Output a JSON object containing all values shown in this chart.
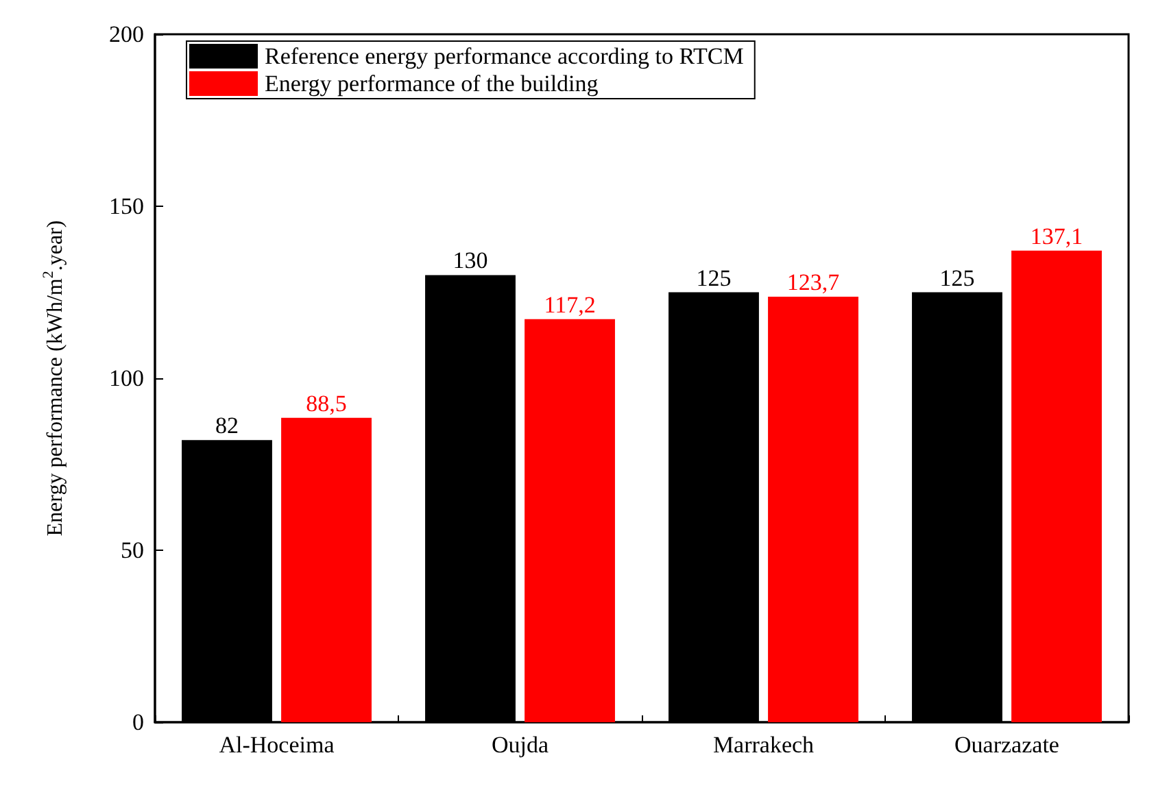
{
  "chart_data": {
    "type": "bar",
    "ylabel": "Energy performance (kWh/m$^{2}$.year)",
    "categories": [
      "Al-Hoceima",
      "Oujda",
      "Marrakech",
      "Ouarzazate"
    ],
    "series": [
      {
        "name": "Reference energy performance according to RTCM",
        "color": "#000000",
        "values": [
          82,
          130,
          125,
          125
        ],
        "value_labels": [
          "82",
          "130",
          "125",
          "125"
        ]
      },
      {
        "name": "Energy performance of the building",
        "color": "#ff0000",
        "values": [
          88.5,
          117.2,
          123.7,
          137.1
        ],
        "value_labels": [
          "88,5",
          "117,2",
          "123,7",
          "137,1"
        ]
      }
    ],
    "ylim": [
      0,
      200
    ],
    "yticks": [
      0,
      50,
      100,
      150,
      200
    ],
    "grid": false,
    "legend": "top left"
  }
}
